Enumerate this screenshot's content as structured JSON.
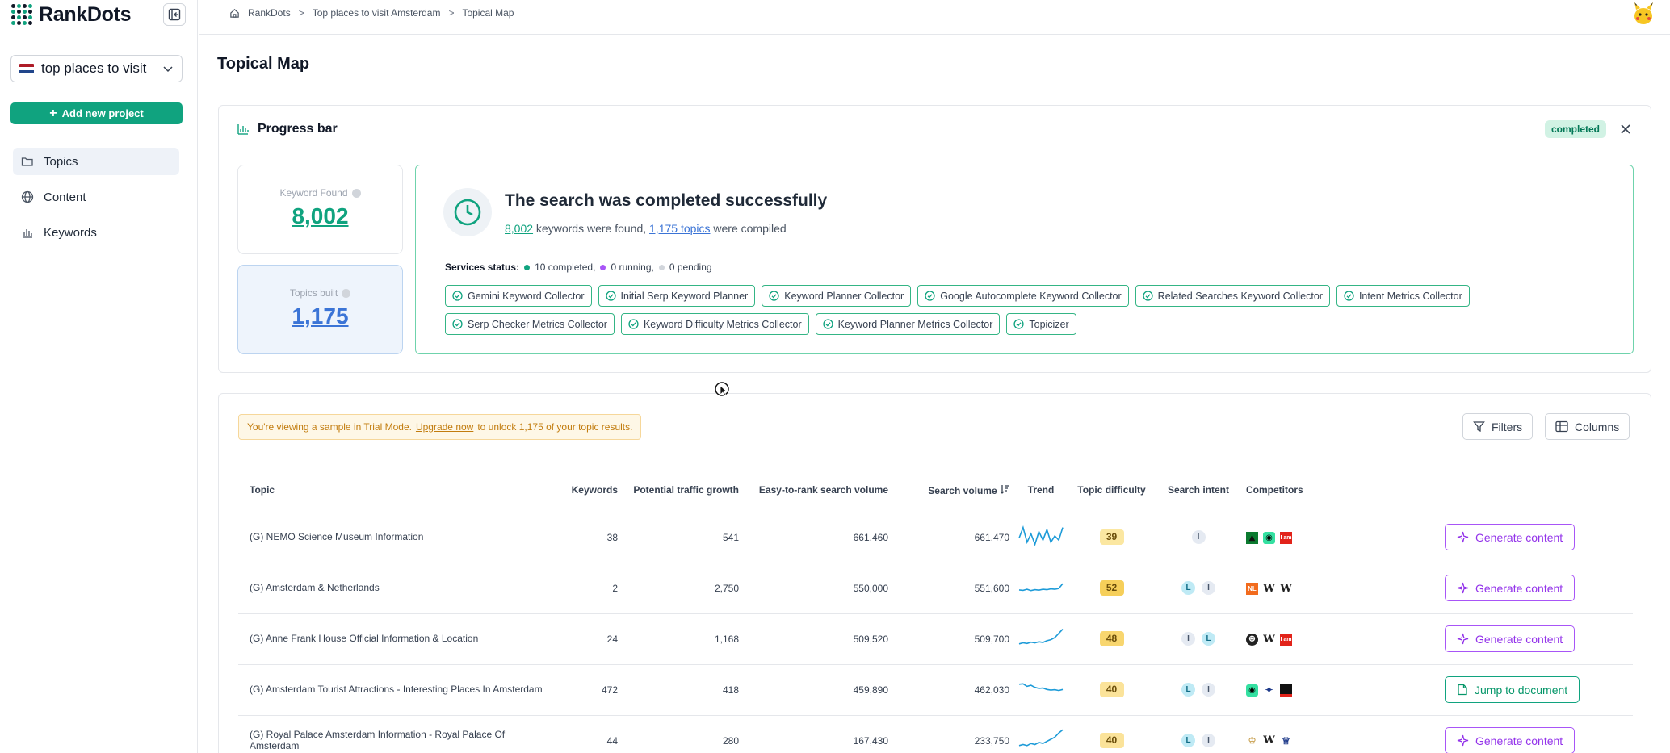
{
  "app": {
    "brand": "RankDots",
    "project": "top places to visit",
    "add_project": "Add new project",
    "nav": [
      "Topics",
      "Content",
      "Keywords"
    ]
  },
  "breadcrumb": [
    "RankDots",
    "Top places to visit Amsterdam",
    "Topical Map"
  ],
  "page_title": "Topical Map",
  "progress": {
    "title": "Progress bar",
    "status": "completed",
    "keywords_label": "Keyword Found",
    "keywords_value": "8,002",
    "topics_label": "Topics built",
    "topics_value": "1,175",
    "result_title": "The search was completed successfully",
    "sub_keywords": "8,002",
    "sub_text1": " keywords were found, ",
    "sub_topics": "1,175 topics",
    "sub_text2": " were compiled",
    "services_label": "Services status:",
    "completed": "10 completed,",
    "running": "0 running,",
    "pending": "0 pending",
    "services": [
      "Gemini Keyword Collector",
      "Initial Serp Keyword Planner",
      "Keyword Planner Collector",
      "Google Autocomplete Keyword Collector",
      "Related Searches Keyword Collector",
      "Intent Metrics Collector",
      "Serp Checker Metrics Collector",
      "Keyword Difficulty Metrics Collector",
      "Keyword Planner Metrics Collector",
      "Topicizer"
    ]
  },
  "trial": {
    "text1": "You're viewing a sample in Trial Mode.",
    "link": "Upgrade now",
    "text2": "to unlock 1,175 of your topic results."
  },
  "toolbar": {
    "filters": "Filters",
    "columns": "Columns"
  },
  "table": {
    "headers": [
      "Topic",
      "Keywords",
      "Potential traffic growth",
      "Easy-to-rank search volume",
      "Search volume",
      "Trend",
      "Topic difficulty",
      "Search intent",
      "Competitors"
    ],
    "rows": [
      {
        "topic": "(G) NEMO Science Museum Information",
        "keywords": "38",
        "growth": "541",
        "easy": "661,460",
        "volume": "661,470",
        "trend": [
          0.4,
          0.9,
          0.2,
          0.6,
          0.1,
          0.7,
          0.3,
          0.8,
          0.2,
          0.5,
          0.3,
          0.9
        ],
        "difficulty": "39",
        "diff_color": "#fbe7a1",
        "intent": [
          "I"
        ],
        "competitors": [
          "tree",
          "owl",
          "iam"
        ],
        "action": "Generate content",
        "action_type": "gen"
      },
      {
        "topic": "(G) Amsterdam & Netherlands",
        "keywords": "2",
        "growth": "2,750",
        "easy": "550,000",
        "volume": "551,600",
        "trend": [
          0.35,
          0.33,
          0.38,
          0.32,
          0.36,
          0.34,
          0.38,
          0.36,
          0.4,
          0.38,
          0.42,
          0.65
        ],
        "difficulty": "52",
        "diff_color": "#f6cf5a",
        "intent": [
          "L",
          "I"
        ],
        "competitors": [
          "nl",
          "W",
          "W"
        ],
        "action": "Generate content",
        "action_type": "gen"
      },
      {
        "topic": "(G) Anne Frank House Official Information & Location",
        "keywords": "24",
        "growth": "1,168",
        "easy": "509,520",
        "volume": "509,700",
        "trend": [
          0.2,
          0.25,
          0.22,
          0.28,
          0.25,
          0.3,
          0.27,
          0.35,
          0.4,
          0.5,
          0.7,
          0.9
        ],
        "difficulty": "48",
        "diff_color": "#f8d66f",
        "intent": [
          "I",
          "L"
        ],
        "competitors": [
          "face",
          "W",
          "iam"
        ],
        "action": "Generate content",
        "action_type": "gen"
      },
      {
        "topic": "(G) Amsterdam Tourist Attractions - Interesting Places In Amsterdam",
        "keywords": "472",
        "growth": "418",
        "easy": "459,890",
        "volume": "462,030",
        "trend": [
          0.7,
          0.72,
          0.6,
          0.65,
          0.55,
          0.5,
          0.52,
          0.45,
          0.42,
          0.44,
          0.4,
          0.45
        ],
        "difficulty": "40",
        "diff_color": "#fbe39a",
        "intent": [
          "L",
          "I"
        ],
        "competitors": [
          "owl",
          "bird",
          "blk"
        ],
        "action": "Jump to document",
        "action_type": "jump"
      },
      {
        "topic": "(G) Royal Palace Amsterdam Information - Royal Palace Of Amsterdam",
        "keywords": "44",
        "growth": "280",
        "easy": "167,430",
        "volume": "233,750",
        "trend": [
          0.2,
          0.25,
          0.2,
          0.3,
          0.25,
          0.35,
          0.3,
          0.4,
          0.5,
          0.6,
          0.8,
          0.95
        ],
        "difficulty": "40",
        "diff_color": "#fbe39a",
        "intent": [
          "L",
          "I"
        ],
        "competitors": [
          "crest",
          "W",
          "crown"
        ],
        "action": "Generate content",
        "action_type": "gen"
      }
    ]
  },
  "colors": {
    "accent": "#10a37f",
    "blue": "#3b74d6",
    "purple": "#9333ea",
    "trend": "#1d9bd8"
  }
}
